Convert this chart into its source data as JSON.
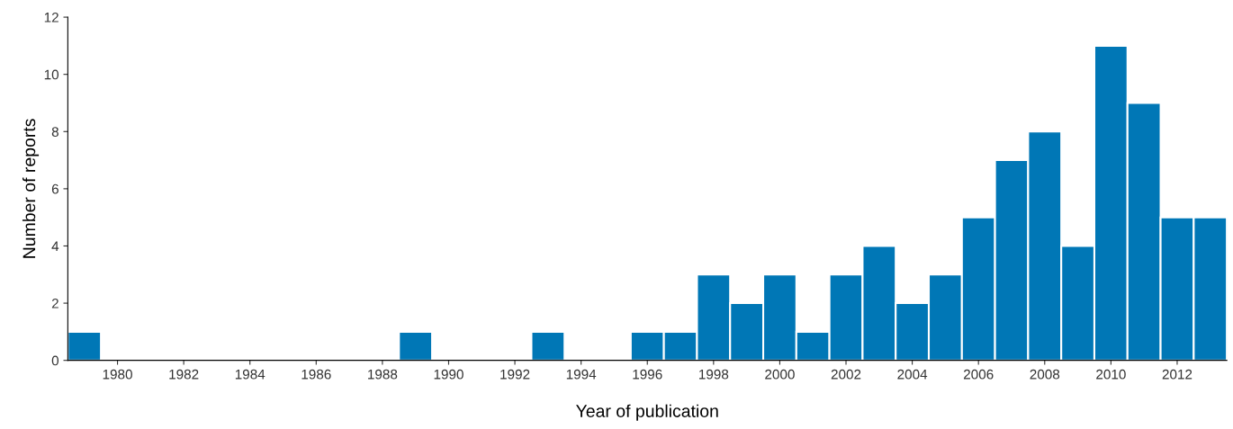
{
  "chart_data": {
    "type": "bar",
    "xlabel": "Year of publication",
    "ylabel": "Number of reports",
    "categories": [
      null,
      "1980",
      null,
      "1982",
      null,
      "1984",
      null,
      "1986",
      null,
      "1988",
      null,
      "1990",
      null,
      "1992",
      null,
      "1994",
      null,
      "1996",
      null,
      "1998",
      null,
      "2000",
      null,
      "2002",
      null,
      "2004",
      null,
      "2006",
      null,
      "2008",
      null,
      "2010",
      null,
      "2012",
      null
    ],
    "values": [
      1,
      0,
      0,
      0,
      0,
      0,
      0,
      0,
      0,
      0,
      1,
      0,
      0,
      0,
      1,
      0,
      0,
      1,
      1,
      3,
      2,
      3,
      1,
      3,
      4,
      2,
      3,
      5,
      7,
      8,
      4,
      11,
      9,
      5,
      5
    ],
    "color": "#0077b6",
    "ylim": [
      0,
      12
    ],
    "yticks": [
      0,
      2,
      4,
      6,
      8,
      10,
      12
    ],
    "grid": false,
    "legend": false
  }
}
